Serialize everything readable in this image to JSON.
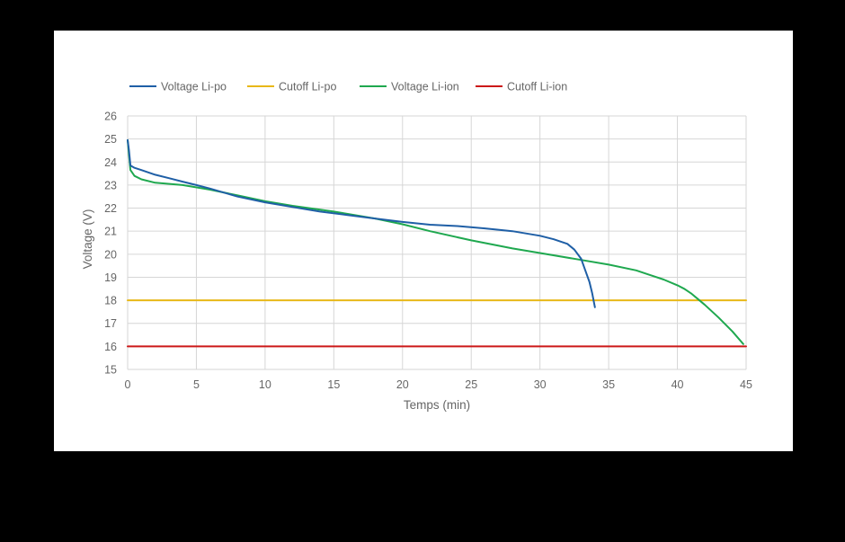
{
  "chart_data": {
    "type": "line",
    "title": "",
    "xlabel": "Temps (min)",
    "ylabel": "Voltage (V)",
    "xlim": [
      0,
      45
    ],
    "ylim": [
      15,
      26
    ],
    "xticks": [
      0,
      5,
      10,
      15,
      20,
      25,
      30,
      35,
      40,
      45
    ],
    "yticks": [
      15,
      16,
      17,
      18,
      19,
      20,
      21,
      22,
      23,
      24,
      25,
      26
    ],
    "grid": true,
    "legend_position": "top-left",
    "series": [
      {
        "name": "Voltage Li-po",
        "color": "#1f5fa6",
        "x": [
          0,
          0.1,
          0.2,
          0.5,
          1,
          2,
          3,
          4,
          5,
          6,
          8,
          10,
          12,
          14,
          16,
          18,
          20,
          22,
          24,
          26,
          28,
          30,
          31,
          32,
          32.5,
          33,
          33.3,
          33.6,
          33.8,
          34
        ],
        "y": [
          24.95,
          24.5,
          23.85,
          23.75,
          23.65,
          23.45,
          23.3,
          23.15,
          23.0,
          22.85,
          22.5,
          22.25,
          22.05,
          21.85,
          21.7,
          21.55,
          21.4,
          21.28,
          21.22,
          21.12,
          21.0,
          20.8,
          20.65,
          20.45,
          20.2,
          19.8,
          19.3,
          18.8,
          18.3,
          17.7
        ]
      },
      {
        "name": "Cutoff Li-po",
        "color": "#e8b818",
        "x": [
          0,
          45
        ],
        "y": [
          18,
          18
        ]
      },
      {
        "name": "Voltage Li-ion",
        "color": "#1fa84f",
        "x": [
          0,
          0.1,
          0.2,
          0.5,
          1,
          2,
          4,
          6,
          8,
          10,
          12,
          15,
          18,
          20,
          22,
          25,
          28,
          30,
          33,
          35,
          37,
          38,
          39,
          40,
          40.5,
          41,
          41.5,
          42,
          43,
          44,
          44.8
        ],
        "y": [
          24.95,
          24.3,
          23.65,
          23.4,
          23.25,
          23.1,
          23.0,
          22.8,
          22.55,
          22.3,
          22.1,
          21.85,
          21.55,
          21.3,
          21.0,
          20.6,
          20.25,
          20.05,
          19.75,
          19.55,
          19.3,
          19.1,
          18.9,
          18.65,
          18.5,
          18.3,
          18.05,
          17.8,
          17.25,
          16.65,
          16.1
        ]
      },
      {
        "name": "Cutoff Li-ion",
        "color": "#cc1818",
        "x": [
          0,
          45
        ],
        "y": [
          16,
          16
        ]
      }
    ]
  },
  "colors": {
    "page_background": "#000000",
    "card_background": "#ffffff",
    "grid": "#d6d6d6",
    "text": "#666666"
  }
}
